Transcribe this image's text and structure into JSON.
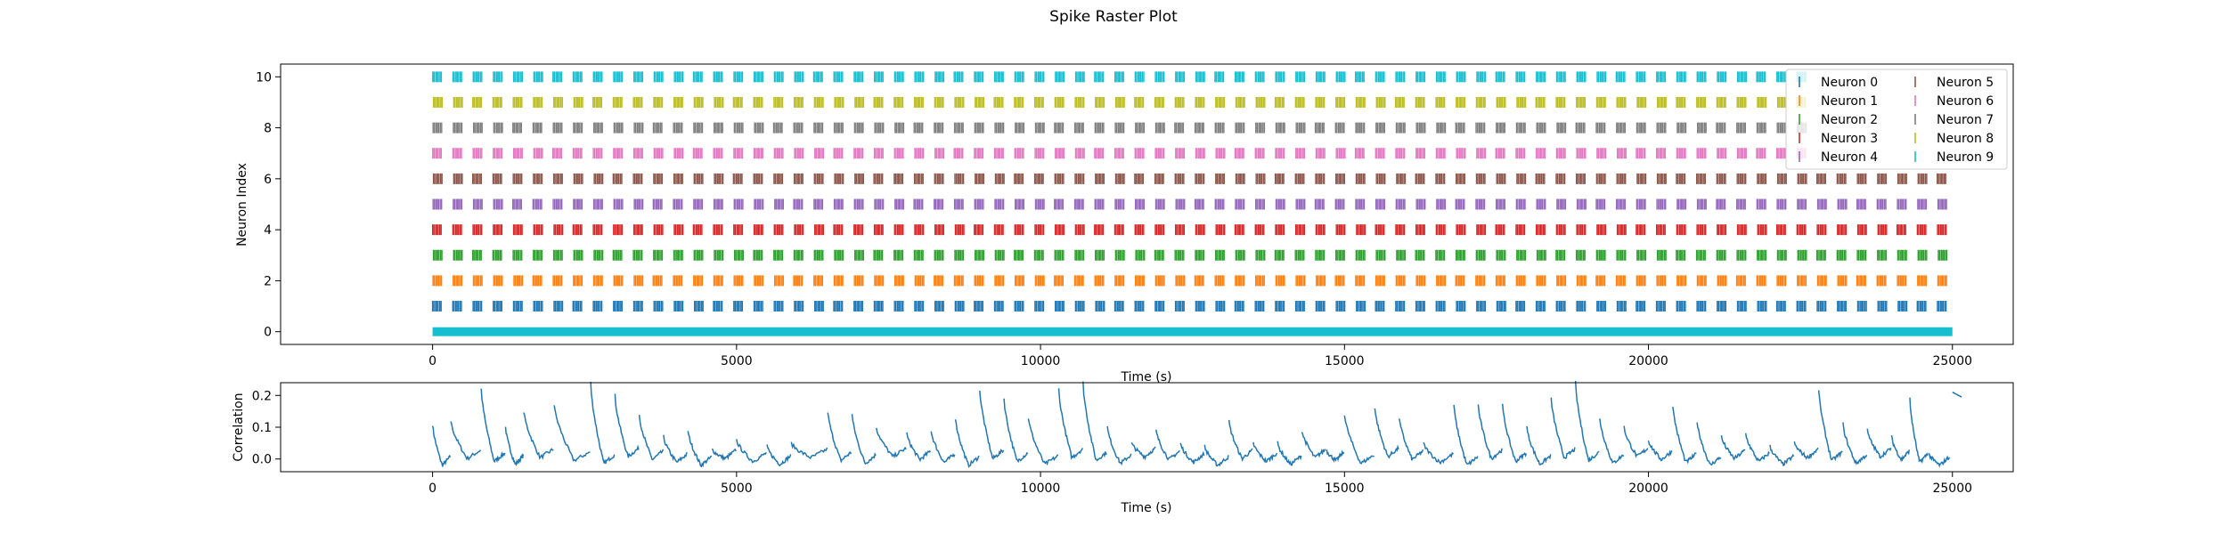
{
  "figure": {
    "suptitle": "Spike Raster Plot"
  },
  "chart_data": [
    {
      "type": "scatter",
      "xlabel": "Time (s)",
      "ylabel": "Neuron Index",
      "xlim": [
        -2500,
        26000
      ],
      "ylim": [
        -0.5,
        10.5
      ],
      "xticks": [
        0,
        5000,
        10000,
        15000,
        20000,
        25000
      ],
      "yticks": [
        0,
        2,
        4,
        6,
        8,
        10
      ],
      "legend": {
        "placement": "top-right",
        "columns": 2
      },
      "baseline": {
        "y": 0,
        "x": [
          0,
          25000
        ],
        "color": "#17becf"
      },
      "burst_period": 330,
      "series": [
        {
          "name": "Neuron 0",
          "row": 1,
          "color": "#1f77b4",
          "x_range": [
            0,
            25000
          ]
        },
        {
          "name": "Neuron 1",
          "row": 2,
          "color": "#ff7f0e",
          "x_range": [
            0,
            25000
          ]
        },
        {
          "name": "Neuron 2",
          "row": 3,
          "color": "#2ca02c",
          "x_range": [
            0,
            25000
          ]
        },
        {
          "name": "Neuron 3",
          "row": 4,
          "color": "#d62728",
          "x_range": [
            0,
            25000
          ]
        },
        {
          "name": "Neuron 4",
          "row": 5,
          "color": "#9467bd",
          "x_range": [
            0,
            25000
          ]
        },
        {
          "name": "Neuron 5",
          "row": 6,
          "color": "#8c564b",
          "x_range": [
            0,
            25000
          ]
        },
        {
          "name": "Neuron 6",
          "row": 7,
          "color": "#e377c2",
          "x_range": [
            0,
            22600
          ]
        },
        {
          "name": "Neuron 7",
          "row": 8,
          "color": "#7f7f7f",
          "x_range": [
            0,
            22600
          ]
        },
        {
          "name": "Neuron 8",
          "row": 9,
          "color": "#bcbd22",
          "x_range": [
            0,
            22600
          ]
        },
        {
          "name": "Neuron 9",
          "row": 10,
          "color": "#17becf",
          "x_range": [
            0,
            22600
          ]
        }
      ]
    },
    {
      "type": "line",
      "xlabel": "Time (s)",
      "ylabel": "Correlation",
      "xlim": [
        -2500,
        26000
      ],
      "ylim": [
        -0.04,
        0.24
      ],
      "xticks": [
        0,
        5000,
        10000,
        15000,
        20000,
        25000
      ],
      "yticks": [
        0.0,
        0.1,
        0.2
      ],
      "color": "#1f77b4",
      "peaks": [
        [
          0,
          0.11
        ],
        [
          300,
          0.12
        ],
        [
          800,
          0.22
        ],
        [
          1200,
          0.1
        ],
        [
          1500,
          0.15
        ],
        [
          2000,
          0.17
        ],
        [
          2600,
          0.24
        ],
        [
          3000,
          0.2
        ],
        [
          3400,
          0.14
        ],
        [
          3800,
          0.07
        ],
        [
          4200,
          0.09
        ],
        [
          4600,
          0.03
        ],
        [
          5000,
          0.06
        ],
        [
          5500,
          0.04
        ],
        [
          5900,
          0.05
        ],
        [
          6500,
          0.15
        ],
        [
          6900,
          0.14
        ],
        [
          7300,
          0.1
        ],
        [
          7800,
          0.08
        ],
        [
          8200,
          0.09
        ],
        [
          8600,
          0.13
        ],
        [
          9000,
          0.22
        ],
        [
          9400,
          0.19
        ],
        [
          9800,
          0.13
        ],
        [
          10300,
          0.22
        ],
        [
          10700,
          0.24
        ],
        [
          11100,
          0.1
        ],
        [
          11500,
          0.05
        ],
        [
          11900,
          0.09
        ],
        [
          12300,
          0.05
        ],
        [
          12700,
          0.04
        ],
        [
          13100,
          0.12
        ],
        [
          13500,
          0.05
        ],
        [
          13900,
          0.05
        ],
        [
          14300,
          0.09
        ],
        [
          14700,
          0.03
        ],
        [
          15000,
          0.14
        ],
        [
          15500,
          0.16
        ],
        [
          15900,
          0.13
        ],
        [
          16300,
          0.05
        ],
        [
          16800,
          0.17
        ],
        [
          17200,
          0.17
        ],
        [
          17600,
          0.17
        ],
        [
          18000,
          0.1
        ],
        [
          18400,
          0.19
        ],
        [
          18800,
          0.24
        ],
        [
          19200,
          0.13
        ],
        [
          19600,
          0.1
        ],
        [
          20000,
          0.06
        ],
        [
          20400,
          0.17
        ],
        [
          20800,
          0.12
        ],
        [
          21200,
          0.07
        ],
        [
          21600,
          0.08
        ],
        [
          22000,
          0.04
        ],
        [
          22400,
          0.05
        ],
        [
          22800,
          0.22
        ],
        [
          23200,
          0.11
        ],
        [
          23600,
          0.09
        ],
        [
          24000,
          0.07
        ],
        [
          24300,
          0.19
        ],
        [
          24600,
          0.02
        ]
      ],
      "tail": {
        "x": [
          25000,
          25150
        ],
        "y": [
          0.21,
          0.195
        ]
      }
    }
  ]
}
